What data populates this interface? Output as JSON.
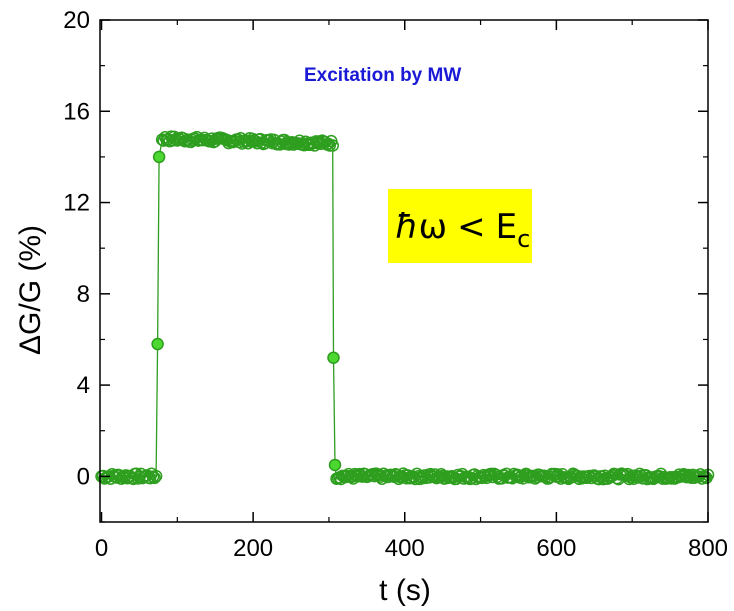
{
  "chart_data": {
    "type": "scatter",
    "xlabel": "t (s)",
    "ylabel": "ΔG/G (%)",
    "xlim": [
      -2,
      800
    ],
    "ylim": [
      -2,
      20
    ],
    "xticks": [
      0,
      200,
      400,
      600,
      800
    ],
    "yticks": [
      0,
      4,
      8,
      12,
      16,
      20
    ],
    "x_tick_labels": [
      "0",
      "200",
      "400",
      "600",
      "800"
    ],
    "y_tick_labels": [
      "0",
      "4",
      "8",
      "12",
      "16",
      "20"
    ],
    "grid": false,
    "legend": "none",
    "annotations": {
      "excitation": "Excitation by MW",
      "condition": {
        "hbar": "ħ",
        "omega": "ω",
        "relation": "<",
        "energy": "E",
        "subscript": "c",
        "box_color": "#ffff00"
      }
    },
    "series": [
      {
        "color": "#2e9e1f",
        "marker": "open-circle",
        "line": true,
        "segments": [
          {
            "x_start": 0,
            "x_end": 72,
            "y_level": 0.0,
            "noise": 0.12
          },
          {
            "x_start": 80,
            "x_end": 305,
            "y_level": 14.8,
            "y_level_end": 14.6,
            "noise": 0.12
          },
          {
            "x_start": 310,
            "x_end": 800,
            "y_level": 0.0,
            "noise": 0.12
          }
        ],
        "highlighted_points": [
          {
            "x": 74,
            "y": 5.8
          },
          {
            "x": 76,
            "y": 14.0
          },
          {
            "x": 306,
            "y": 5.2
          },
          {
            "x": 308,
            "y": 0.5
          }
        ]
      }
    ],
    "colors": {
      "series": "#2e9e1f",
      "highlight_fill": "#4cd830",
      "annotation_text": "#1a1ad6",
      "formula_box": "#ffff00"
    }
  }
}
